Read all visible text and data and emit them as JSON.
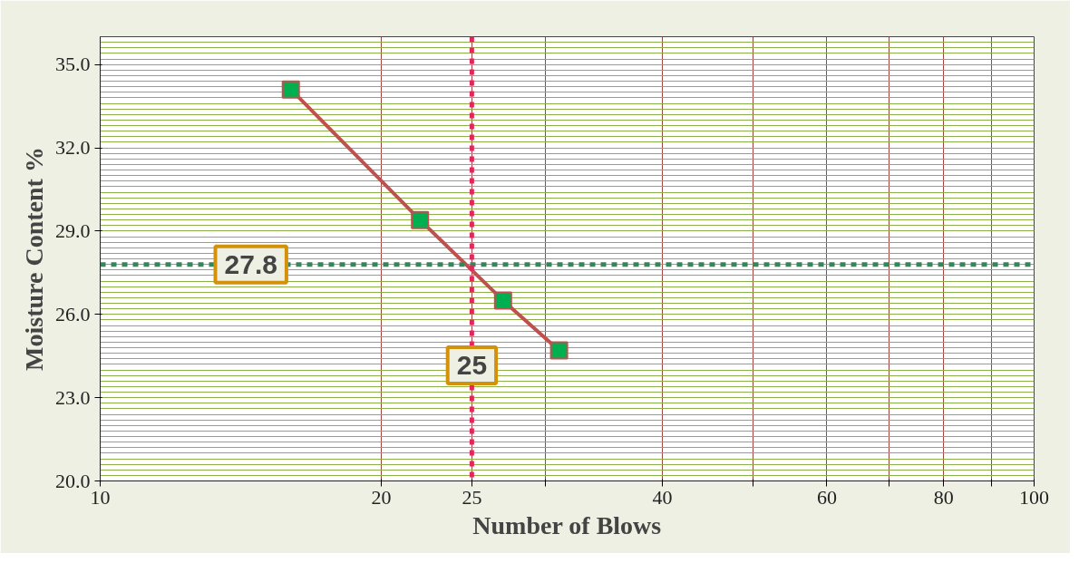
{
  "chart_data": {
    "type": "line",
    "xlabel": "Number of Blows",
    "ylabel": "Moisture Content %",
    "x": [
      16,
      22,
      27,
      31
    ],
    "series": [
      {
        "color": "#c0504d",
        "values": [
          34.1,
          29.4,
          26.5,
          24.7
        ]
      }
    ],
    "marker": "square",
    "line_style": "solid",
    "log": "x",
    "xlim": [
      10,
      100
    ],
    "xticks": [
      10,
      20,
      25,
      {
        "value": 30,
        "label": null
      },
      40,
      {
        "value": 50,
        "label": null
      },
      60,
      {
        "value": 70,
        "label": null
      },
      80,
      {
        "value": 90,
        "label": null
      },
      100
    ],
    "ylim": [
      20,
      36
    ],
    "yticks": [
      {
        "value": 20,
        "label": "20.0"
      },
      {
        "value": 23,
        "label": "23.0"
      },
      {
        "value": 26,
        "label": "26.0"
      },
      {
        "value": 29,
        "label": "29.0"
      },
      {
        "value": 32,
        "label": "32.0"
      },
      {
        "value": 35,
        "label": "35.0"
      }
    ],
    "grid": true,
    "ref_lines": [
      {
        "axis": "y",
        "value": 27.8,
        "label": "27.8",
        "color": "#2e8b57",
        "line_style": "dashed"
      },
      {
        "axis": "x",
        "value": 25,
        "label": "25",
        "color": "#e8245c",
        "line_style": "dashed"
      }
    ]
  }
}
